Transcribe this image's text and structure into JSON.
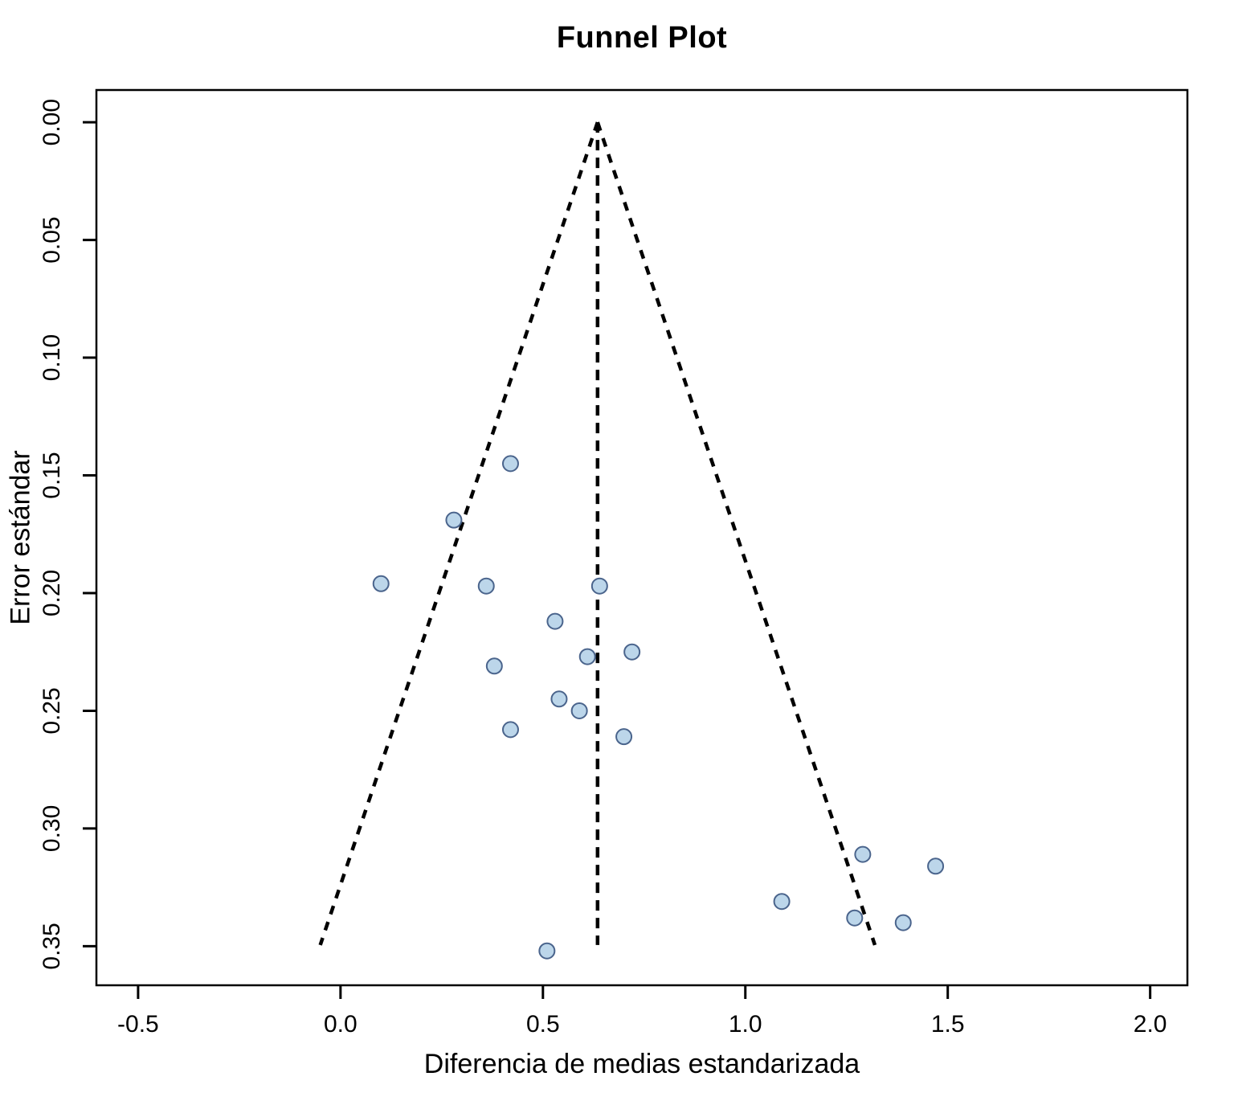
{
  "chart_data": {
    "type": "scatter",
    "subtype": "funnel-plot",
    "title": "Funnel Plot",
    "xlabel": "Diferencia de medias estandarizada",
    "ylabel": "Error estándar",
    "axes": {
      "xlim": [
        -0.603,
        2.092
      ],
      "ylim": [
        -0.0137,
        0.3666
      ],
      "y_inverted": true,
      "grid": false,
      "x_ticks": [
        {
          "value": -0.5,
          "label": "-0.5"
        },
        {
          "value": 0.0,
          "label": "0.0"
        },
        {
          "value": 0.5,
          "label": "0.5"
        },
        {
          "value": 1.0,
          "label": "1.0"
        },
        {
          "value": 1.5,
          "label": "1.5"
        },
        {
          "value": 2.0,
          "label": "2.0"
        }
      ],
      "y_ticks": [
        {
          "value": 0.0,
          "label": "0.00"
        },
        {
          "value": 0.05,
          "label": "0.05"
        },
        {
          "value": 0.1,
          "label": "0.10"
        },
        {
          "value": 0.15,
          "label": "0.15"
        },
        {
          "value": 0.2,
          "label": "0.20"
        },
        {
          "value": 0.25,
          "label": "0.25"
        },
        {
          "value": 0.3,
          "label": "0.30"
        },
        {
          "value": 0.35,
          "label": "0.35"
        }
      ]
    },
    "funnel": {
      "estimate": 0.635,
      "z": 1.96,
      "se_top": 0.0,
      "se_bottom": 0.3495,
      "line_style": "dashed"
    },
    "points": [
      {
        "x": 0.42,
        "se": 0.145
      },
      {
        "x": 0.28,
        "se": 0.169
      },
      {
        "x": 0.1,
        "se": 0.196
      },
      {
        "x": 0.36,
        "se": 0.197
      },
      {
        "x": 0.64,
        "se": 0.197
      },
      {
        "x": 0.53,
        "se": 0.212
      },
      {
        "x": 0.61,
        "se": 0.227
      },
      {
        "x": 0.72,
        "se": 0.225
      },
      {
        "x": 0.38,
        "se": 0.231
      },
      {
        "x": 0.54,
        "se": 0.245
      },
      {
        "x": 0.59,
        "se": 0.25
      },
      {
        "x": 0.42,
        "se": 0.258
      },
      {
        "x": 0.7,
        "se": 0.261
      },
      {
        "x": 1.29,
        "se": 0.311
      },
      {
        "x": 1.47,
        "se": 0.316
      },
      {
        "x": 1.09,
        "se": 0.331
      },
      {
        "x": 1.27,
        "se": 0.338
      },
      {
        "x": 1.39,
        "se": 0.34
      },
      {
        "x": 0.51,
        "se": 0.352
      }
    ],
    "colors": {
      "background": "#ffffff",
      "axis": "#000000",
      "text": "#000000",
      "funnel_line": "#000000",
      "point_fill": "#bcd6ea",
      "point_stroke": "#4a648c"
    }
  }
}
